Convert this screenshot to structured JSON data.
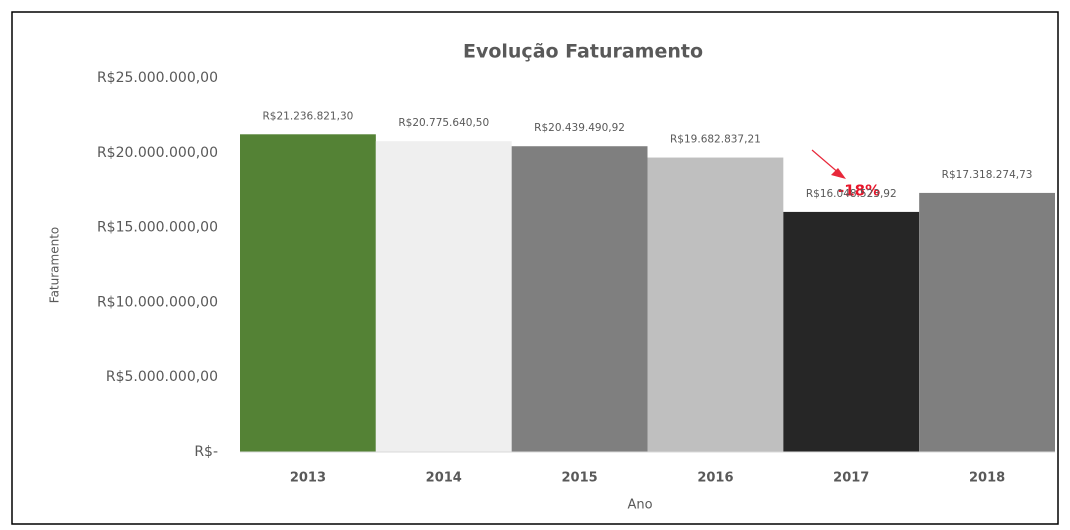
{
  "chart_data": {
    "type": "bar",
    "title": "Evolução Faturamento",
    "x_label": "Ano",
    "y_label": "Faturamento",
    "categories": [
      "2013",
      "2014",
      "2015",
      "2016",
      "2017",
      "2018"
    ],
    "values": [
      21236821.3,
      20775640.5,
      20439490.92,
      19682837.21,
      16048523.92,
      17318274.73
    ],
    "value_labels": [
      "R$21.236.821,30",
      "R$20.775.640,50",
      "R$20.439.490,92",
      "R$19.682.837,21",
      "R$16.048.523,92",
      "R$17.318.274,73"
    ],
    "colors": [
      "#548235",
      "#efefef",
      "#7f7f7f",
      "#bfbfbf",
      "#262626",
      "#7f7f7f"
    ],
    "ylim": [
      0,
      25000000
    ],
    "yticks": [
      {
        "value": 0,
        "label": "R$-"
      },
      {
        "value": 5000000,
        "label": "R$5.000.000,00"
      },
      {
        "value": 10000000,
        "label": "R$10.000.000,00"
      },
      {
        "value": 15000000,
        "label": "R$15.000.000,00"
      },
      {
        "value": 20000000,
        "label": "R$20.000.000,00"
      },
      {
        "value": 25000000,
        "label": "R$25.000.000,00"
      }
    ],
    "grid": false,
    "annotation": "-18%"
  }
}
